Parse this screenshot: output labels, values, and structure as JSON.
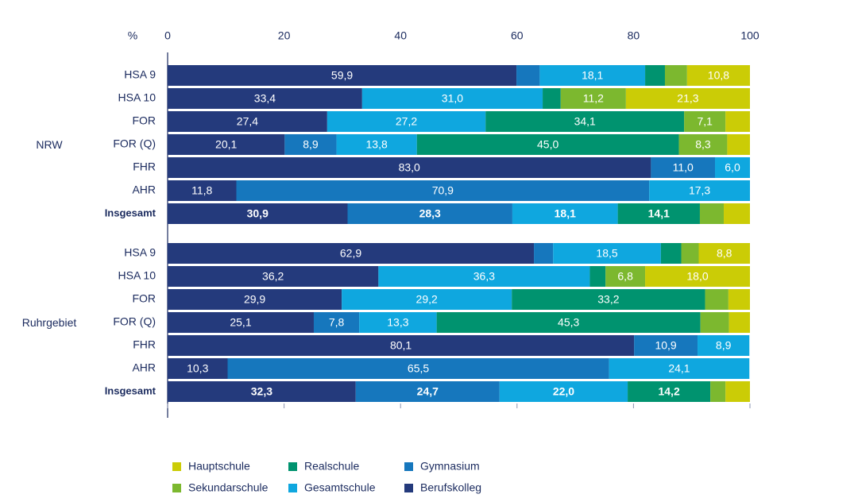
{
  "chart_data": {
    "type": "bar",
    "orientation": "horizontal",
    "stacked": true,
    "unit_label": "%",
    "x_ticks": [
      "0",
      "20",
      "40",
      "60",
      "80",
      "100"
    ],
    "xlim": [
      0,
      100
    ],
    "grid": false,
    "legend_position": "bottom",
    "colors": {
      "Berufskolleg": "#243a7c",
      "Gymnasium": "#1677bd",
      "Gesamtschule": "#0fa7df",
      "Realschule": "#00936f",
      "Sekundarschule": "#7cb82f",
      "Hauptschule": "#cbcc06"
    },
    "stack_order": [
      "Berufskolleg",
      "Gymnasium",
      "Gesamtschule",
      "Realschule",
      "Sekundarschule",
      "Hauptschule"
    ],
    "legend": [
      [
        "Hauptschule",
        "Realschule",
        "Gymnasium"
      ],
      [
        "Sekundarschule",
        "Gesamtschule",
        "Berufskolleg"
      ]
    ],
    "groups": [
      {
        "name": "NRW",
        "categories": [
          "HSA 9",
          "HSA 10",
          "FOR",
          "FOR (Q)",
          "FHR",
          "AHR",
          "Insgesamt"
        ],
        "rows": [
          {
            "values": {
              "Berufskolleg": 59.9,
              "Gymnasium": 4.0,
              "Gesamtschule": 18.1,
              "Realschule": 3.4,
              "Sekundarschule": 3.8,
              "Hauptschule": 10.8
            },
            "labels": {
              "Berufskolleg": "59,9",
              "Gesamtschule": "18,1",
              "Hauptschule": "10,8"
            }
          },
          {
            "values": {
              "Berufskolleg": 33.4,
              "Gymnasium": 0,
              "Gesamtschule": 31.0,
              "Realschule": 3.1,
              "Sekundarschule": 11.2,
              "Hauptschule": 21.3
            },
            "labels": {
              "Berufskolleg": "33,4",
              "Gesamtschule": "31,0",
              "Sekundarschule": "11,2",
              "Hauptschule": "21,3"
            }
          },
          {
            "values": {
              "Berufskolleg": 27.4,
              "Gymnasium": 0,
              "Gesamtschule": 27.2,
              "Realschule": 34.1,
              "Sekundarschule": 7.1,
              "Hauptschule": 4.2
            },
            "labels": {
              "Berufskolleg": "27,4",
              "Gesamtschule": "27,2",
              "Realschule": "34,1",
              "Sekundarschule": "7,1"
            }
          },
          {
            "values": {
              "Berufskolleg": 20.1,
              "Gymnasium": 8.9,
              "Gesamtschule": 13.8,
              "Realschule": 45.0,
              "Sekundarschule": 8.3,
              "Hauptschule": 3.9
            },
            "labels": {
              "Berufskolleg": "20,1",
              "Gymnasium": "8,9",
              "Gesamtschule": "13,8",
              "Realschule": "45,0",
              "Sekundarschule": "8,3"
            }
          },
          {
            "values": {
              "Berufskolleg": 83.0,
              "Gymnasium": 11.0,
              "Gesamtschule": 6.0,
              "Realschule": 0,
              "Sekundarschule": 0,
              "Hauptschule": 0
            },
            "labels": {
              "Berufskolleg": "83,0",
              "Gymnasium": "11,0",
              "Gesamtschule": "6,0"
            }
          },
          {
            "values": {
              "Berufskolleg": 11.8,
              "Gymnasium": 70.9,
              "Gesamtschule": 17.3,
              "Realschule": 0,
              "Sekundarschule": 0,
              "Hauptschule": 0
            },
            "labels": {
              "Berufskolleg": "11,8",
              "Gymnasium": "70,9",
              "Gesamtschule": "17,3"
            }
          },
          {
            "bold": true,
            "values": {
              "Berufskolleg": 30.9,
              "Gymnasium": 28.3,
              "Gesamtschule": 18.1,
              "Realschule": 14.1,
              "Sekundarschule": 4.1,
              "Hauptschule": 4.5
            },
            "labels": {
              "Berufskolleg": "30,9",
              "Gymnasium": "28,3",
              "Gesamtschule": "18,1",
              "Realschule": "14,1"
            }
          }
        ]
      },
      {
        "name": "Ruhrgebiet",
        "categories": [
          "HSA 9",
          "HSA 10",
          "FOR",
          "FOR (Q)",
          "FHR",
          "AHR",
          "Insgesamt"
        ],
        "rows": [
          {
            "values": {
              "Berufskolleg": 62.9,
              "Gymnasium": 3.3,
              "Gesamtschule": 18.5,
              "Realschule": 3.5,
              "Sekundarschule": 3.0,
              "Hauptschule": 8.8
            },
            "labels": {
              "Berufskolleg": "62,9",
              "Gesamtschule": "18,5",
              "Hauptschule": "8,8"
            }
          },
          {
            "values": {
              "Berufskolleg": 36.2,
              "Gymnasium": 0,
              "Gesamtschule": 36.3,
              "Realschule": 2.7,
              "Sekundarschule": 6.8,
              "Hauptschule": 18.0
            },
            "labels": {
              "Berufskolleg": "36,2",
              "Gesamtschule": "36,3",
              "Sekundarschule": "6,8",
              "Hauptschule": "18,0"
            }
          },
          {
            "values": {
              "Berufskolleg": 29.9,
              "Gymnasium": 0,
              "Gesamtschule": 29.2,
              "Realschule": 33.2,
              "Sekundarschule": 4.0,
              "Hauptschule": 3.7
            },
            "labels": {
              "Berufskolleg": "29,9",
              "Gesamtschule": "29,2",
              "Realschule": "33,2"
            }
          },
          {
            "values": {
              "Berufskolleg": 25.1,
              "Gymnasium": 7.8,
              "Gesamtschule": 13.3,
              "Realschule": 45.3,
              "Sekundarschule": 4.9,
              "Hauptschule": 3.6
            },
            "labels": {
              "Berufskolleg": "25,1",
              "Gymnasium": "7,8",
              "Gesamtschule": "13,3",
              "Realschule": "45,3"
            }
          },
          {
            "values": {
              "Berufskolleg": 80.1,
              "Gymnasium": 10.9,
              "Gesamtschule": 8.9,
              "Realschule": 0,
              "Sekundarschule": 0,
              "Hauptschule": 0
            },
            "labels": {
              "Berufskolleg": "80,1",
              "Gymnasium": "10,9",
              "Gesamtschule": "8,9"
            }
          },
          {
            "values": {
              "Berufskolleg": 10.3,
              "Gymnasium": 65.5,
              "Gesamtschule": 24.1,
              "Realschule": 0,
              "Sekundarschule": 0,
              "Hauptschule": 0
            },
            "labels": {
              "Berufskolleg": "10,3",
              "Gymnasium": "65,5",
              "Gesamtschule": "24,1"
            }
          },
          {
            "bold": true,
            "values": {
              "Berufskolleg": 32.3,
              "Gymnasium": 24.7,
              "Gesamtschule": 22.0,
              "Realschule": 14.2,
              "Sekundarschule": 2.6,
              "Hauptschule": 4.2
            },
            "labels": {
              "Berufskolleg": "32,3",
              "Gymnasium": "24,7",
              "Gesamtschule": "22,0",
              "Realschule": "14,2"
            }
          }
        ]
      }
    ]
  }
}
